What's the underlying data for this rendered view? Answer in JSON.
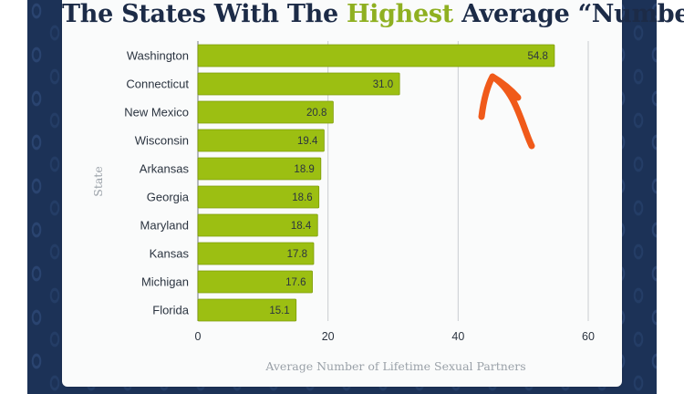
{
  "title": {
    "before": "The States With The ",
    "highlight": "Highest",
    "after": " Average “Number”"
  },
  "colors": {
    "bar": "#9cbf12",
    "bar_border": "#7e9c08",
    "title_highlight": "#8fb021",
    "annotation_arrow": "#f05a1a",
    "background": "#1c3257"
  },
  "annotation": {
    "type": "hand-drawn arrow",
    "points_to": "Washington"
  },
  "chart_data": {
    "type": "bar",
    "orientation": "horizontal",
    "categories": [
      "Washington",
      "Connecticut",
      "New Mexico",
      "Wisconsin",
      "Arkansas",
      "Georgia",
      "Maryland",
      "Kansas",
      "Michigan",
      "Florida"
    ],
    "values": [
      54.8,
      31.0,
      20.8,
      19.4,
      18.9,
      18.6,
      18.4,
      17.8,
      17.6,
      15.1
    ],
    "value_labels": [
      "54.8",
      "31.0",
      "20.8",
      "19.4",
      "18.9",
      "18.6",
      "18.4",
      "17.8",
      "17.6",
      "15.1"
    ],
    "xlabel": "Average Number of Lifetime Sexual Partners",
    "ylabel": "State",
    "xlim": [
      0,
      60
    ],
    "xticks": [
      0,
      20,
      40,
      60
    ],
    "grid": true
  }
}
